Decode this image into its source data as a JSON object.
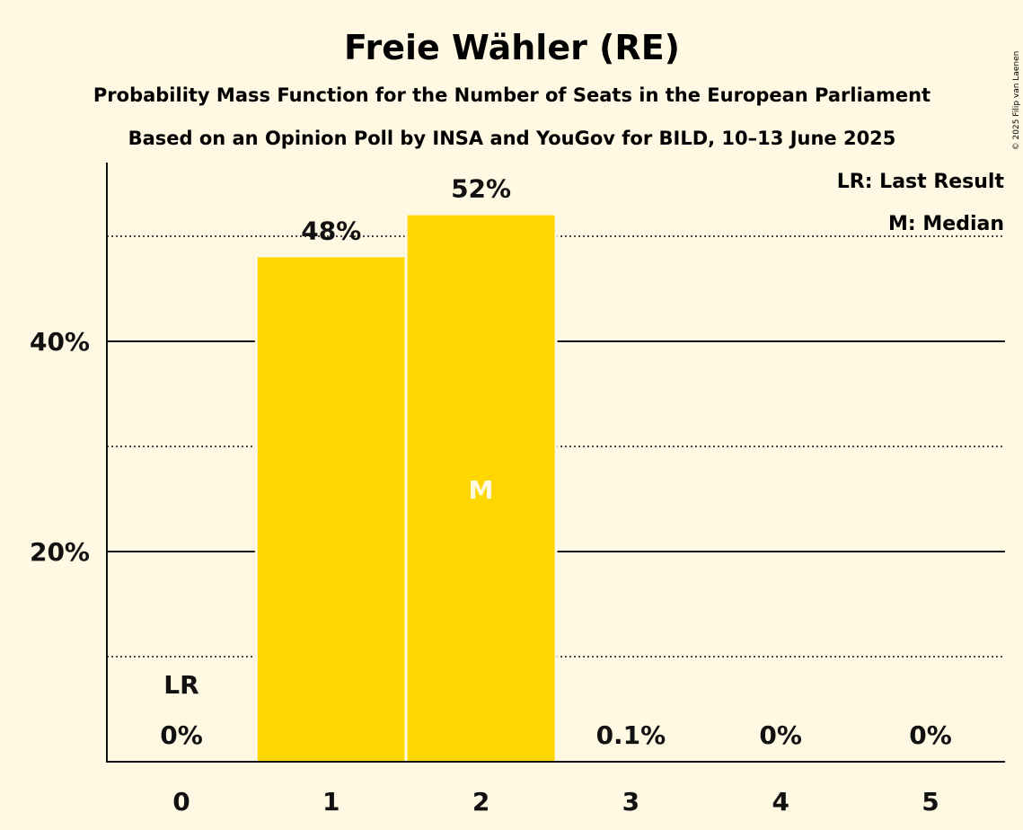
{
  "title": "Freie Wähler (RE)",
  "subtitle1": "Probability Mass Function for the Number of Seats in the European Parliament",
  "subtitle2": "Based on an Opinion Poll by INSA and YouGov for BILD, 10–13 June 2025",
  "copyright": "© 2025 Filip van Laenen",
  "legend": {
    "last_result": "LR: Last Result",
    "median": "M: Median"
  },
  "colors": {
    "background": "#FFF8E3",
    "bar": "#FFD700",
    "median_text": "#FFF8E3",
    "text": "#111111"
  },
  "chart_data": {
    "type": "bar",
    "categories": [
      "0",
      "1",
      "2",
      "3",
      "4",
      "5"
    ],
    "values": [
      0,
      48,
      52,
      0.1,
      0,
      0
    ],
    "data_labels": [
      "0%",
      "48%",
      "52%",
      "0.1%",
      "0%",
      "0%"
    ],
    "ytick_labels": [
      "20%",
      "40%"
    ],
    "yticks": [
      20,
      40
    ],
    "minor_gridlines": [
      10,
      30,
      50
    ],
    "ylim": [
      0,
      57
    ],
    "last_result_index": 0,
    "last_result_label": "LR",
    "median_index": 2,
    "median_label": "M"
  }
}
